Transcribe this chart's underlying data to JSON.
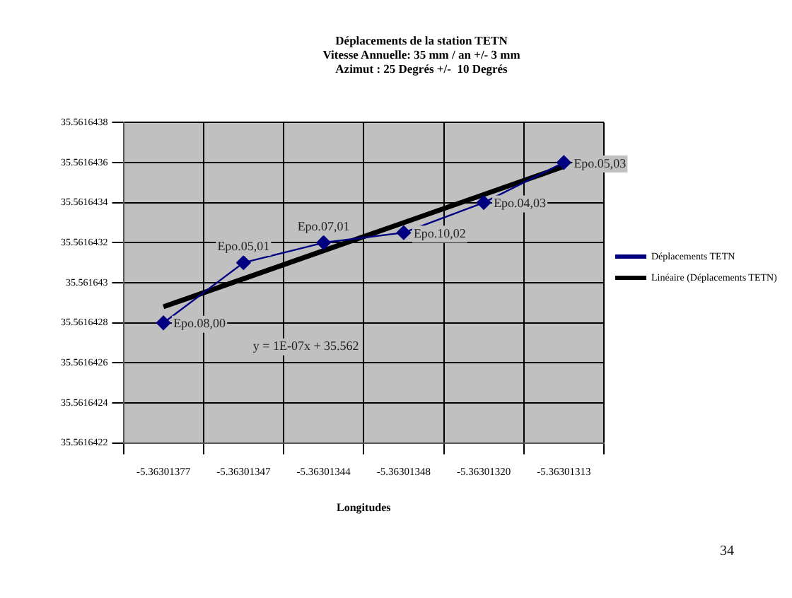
{
  "chart_data": {
    "type": "line",
    "title": "Déplacements de la station TETN",
    "subtitle": "Vitesse Annuelle: 35 mm / an +/- 3 mm\nAzimut : 25 Degrés +/-  10 Degrés",
    "xlabel": "Longitudes",
    "categories": [
      "-5.36301377",
      "-5.36301347",
      "-5.36301344",
      "-5.36301348",
      "-5.36301320",
      "-5.36301313"
    ],
    "series": [
      {
        "name": "Déplacements TETN",
        "color": "#000080",
        "marker": "diamond",
        "values": [
          35.5616428,
          35.5616431,
          35.5616432,
          35.56164325,
          35.5616434,
          35.5616436
        ],
        "value_labels": [
          "Epo.08,00",
          "Epo.05,01",
          "Epo.07,01",
          "Epo.10,02",
          "Epo.04,03",
          "Epo.05,03"
        ]
      },
      {
        "name": "Linéaire (Déplacements TETN)",
        "type": "line",
        "color": "#000000",
        "marker": "none",
        "values": [
          35.56164288,
          35.56164302,
          35.56164316,
          35.5616433,
          35.56164344,
          35.56164358
        ]
      }
    ],
    "ylim": [
      35.5616422,
      35.5616438
    ],
    "yticks": [
      35.5616422,
      35.5616424,
      35.5616426,
      35.5616428,
      {
        "value": 35.561643,
        "label": "35.561643"
      },
      35.5616432,
      35.5616434,
      35.5616436,
      35.5616438
    ],
    "grid": true,
    "legend": "right",
    "annotations": [
      "y = 1E-07x + 35.562",
      "34"
    ]
  }
}
